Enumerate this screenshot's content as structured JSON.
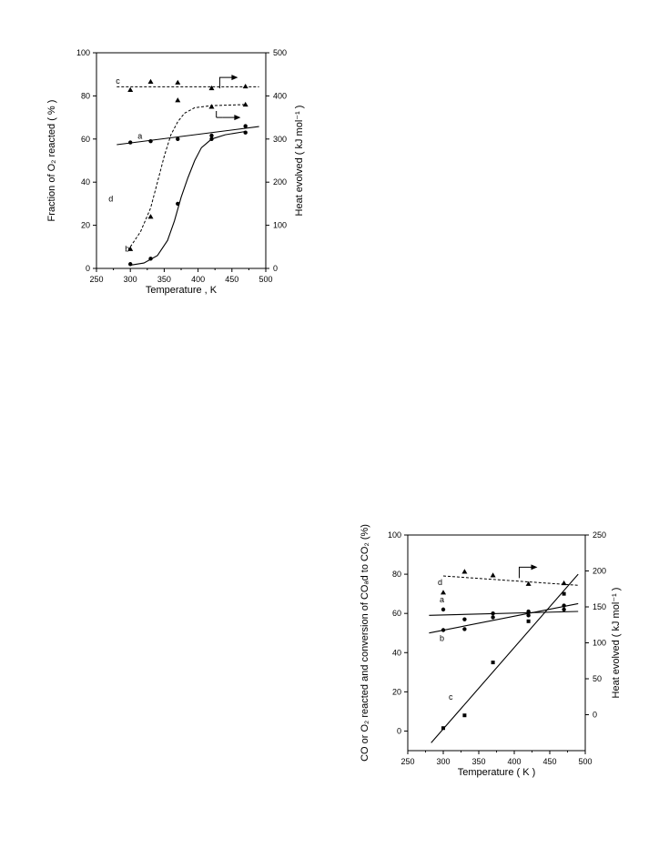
{
  "chart_data": [
    {
      "type": "scatter",
      "xlabel": "Temperature , K",
      "ylabel_left": "Fraction  of  O₂  reacted ( % )",
      "ylabel_right": "Heat  evolved ( kJ mol⁻¹ )",
      "xlim": [
        250,
        500
      ],
      "ylim_left": [
        0,
        100
      ],
      "ylim_right": [
        0,
        500
      ],
      "x_ticks": [
        "250",
        "300",
        "350",
        "400",
        "450",
        "500"
      ],
      "y_ticks_left": [
        "0",
        "20",
        "40",
        "60",
        "80",
        "100"
      ],
      "y_ticks_right": [
        "0",
        "100",
        "200",
        "300",
        "400",
        "500"
      ],
      "grid": false,
      "series": [
        {
          "name": "a",
          "axis": "right",
          "marker": "circle",
          "line": "solid-linear",
          "x": [
            300,
            330,
            370,
            420,
            470
          ],
          "y": [
            292,
            295,
            300,
            308,
            330
          ],
          "fit": {
            "x": [
              280,
              490
            ],
            "y": [
              287,
              329
            ]
          }
        },
        {
          "name": "b",
          "axis": "left",
          "marker": "circle",
          "line": "solid-sigmoid",
          "x": [
            300,
            330,
            370,
            420,
            470
          ],
          "y": [
            2,
            4.5,
            30,
            60,
            63
          ],
          "curve": {
            "x": [
              300,
              320,
              340,
              355,
              365,
              375,
              385,
              395,
              405,
              420,
              440,
              470
            ],
            "y": [
              1.5,
              2.5,
              6,
              13,
              22,
              33,
              42,
              50,
              56,
              60,
              62,
              63.5
            ]
          }
        },
        {
          "name": "c",
          "axis": "right",
          "marker": "triangle",
          "line": "dashed-linear",
          "x": [
            300,
            330,
            370,
            420,
            470
          ],
          "y": [
            414,
            433,
            431,
            418,
            422
          ],
          "fit": {
            "x": [
              280,
              490
            ],
            "y": [
              421,
              421
            ]
          }
        },
        {
          "name": "d",
          "axis": "left",
          "marker": "triangle",
          "line": "dashed-sigmoid",
          "x": [
            300,
            330,
            370,
            420,
            470
          ],
          "y": [
            9,
            24,
            78,
            75,
            76
          ],
          "curve": {
            "x": [
              300,
              315,
              330,
              340,
              350,
              360,
              370,
              380,
              395,
              420,
              470
            ],
            "y": [
              10,
              17,
              28,
              40,
              52,
              62,
              68,
              72,
              74.5,
              75.5,
              76
            ]
          }
        }
      ],
      "annotations": [
        "right-axis arrow for series c",
        "right-axis arrow for series d"
      ]
    },
    {
      "type": "scatter",
      "xlabel": "Temperature ( K )",
      "ylabel_left": "CO or O₂ reacted  and  conversion  of  COₐd  to CO₂ (%)",
      "ylabel_right": "Heat evolved ( kJ mol⁻¹ )",
      "xlim": [
        250,
        500
      ],
      "ylim_left": [
        -10,
        100
      ],
      "ylim_right": [
        -50,
        250
      ],
      "x_ticks": [
        "250",
        "300",
        "350",
        "400",
        "450",
        "500"
      ],
      "y_ticks_left": [
        "0",
        "20",
        "40",
        "60",
        "80",
        "100"
      ],
      "y_ticks_right": [
        "0",
        "50",
        "100",
        "150",
        "200",
        "250"
      ],
      "grid": false,
      "series": [
        {
          "name": "a",
          "axis": "left",
          "marker": "circle",
          "line": "solid-linear",
          "x": [
            300,
            330,
            370,
            420,
            470
          ],
          "y": [
            62,
            57,
            60,
            61,
            64
          ],
          "fit": {
            "x": [
              280,
              490
            ],
            "y": [
              59,
              61
            ]
          }
        },
        {
          "name": "b",
          "axis": "left",
          "marker": "circle",
          "line": "solid-linear",
          "x": [
            300,
            330,
            370,
            420,
            470
          ],
          "y": [
            51.5,
            52,
            58,
            59,
            62
          ],
          "fit": {
            "x": [
              280,
              490
            ],
            "y": [
              50,
              65
            ]
          }
        },
        {
          "name": "c",
          "axis": "left",
          "marker": "square",
          "line": "solid-linear",
          "x": [
            300,
            330,
            370,
            420,
            470
          ],
          "y": [
            1.5,
            8,
            35,
            56,
            70
          ],
          "fit": {
            "x": [
              283,
              490
            ],
            "y": [
              -6,
              80
            ]
          }
        },
        {
          "name": "d",
          "axis": "right",
          "marker": "triangle",
          "line": "dashed-linear",
          "x": [
            300,
            330,
            370,
            420,
            470
          ],
          "y": [
            170,
            199,
            194,
            182,
            183
          ],
          "fit": {
            "x": [
              300,
              490
            ],
            "y": [
              193,
              180
            ]
          }
        }
      ],
      "annotations": [
        "right-axis arrow for series d"
      ]
    }
  ]
}
